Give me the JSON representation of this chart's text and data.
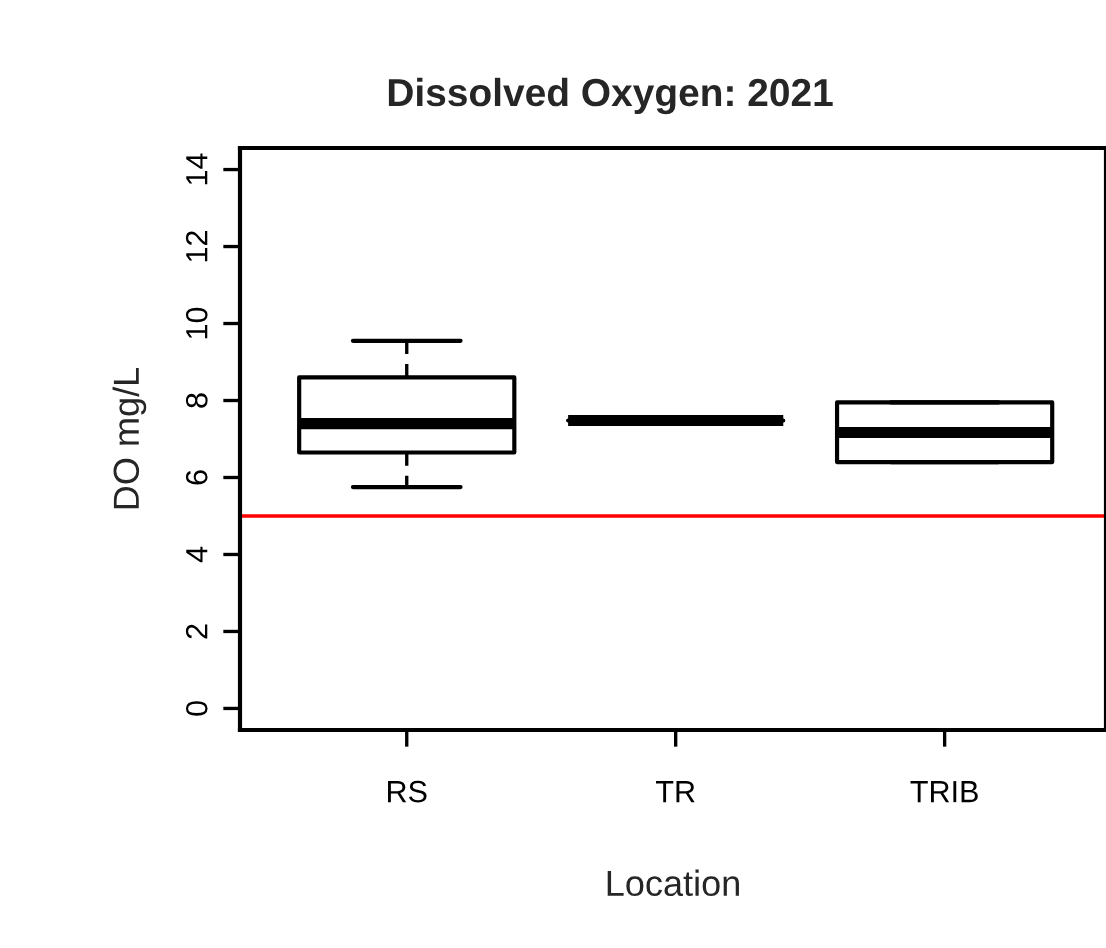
{
  "chart_data": {
    "type": "box",
    "title": "Dissolved Oxygen: 2021",
    "xlabel": "Location",
    "ylabel": "DO mg/L",
    "categories": [
      "RS",
      "TR",
      "TRIB"
    ],
    "boxes": [
      {
        "low": 5.75,
        "q1": 6.65,
        "median": 7.4,
        "q3": 8.6,
        "high": 9.55
      },
      {
        "low": 7.48,
        "q1": 7.48,
        "median": 7.48,
        "q3": 7.48,
        "high": 7.48
      },
      {
        "low": 6.4,
        "q1": 6.4,
        "median": 7.17,
        "q3": 7.95,
        "high": 7.95
      }
    ],
    "ylim": [
      -0.56,
      14.56
    ],
    "yticks": [
      0,
      2,
      4,
      6,
      8,
      10,
      12,
      14
    ],
    "ref_lines": [
      {
        "axis": "y",
        "value": 5,
        "color": "#ff0000"
      }
    ]
  }
}
